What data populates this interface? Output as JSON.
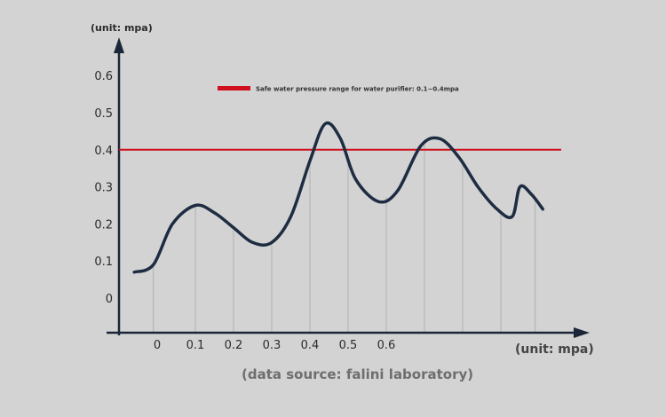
{
  "chart_data": {
    "type": "line",
    "y_unit_label": "(unit: mpa)",
    "x_unit_label": "(unit: mpa)",
    "source": "(data source: falini laboratory)",
    "y_ticks": [
      "0",
      "0.1",
      "0.2",
      "0.3",
      "0.4",
      "0.5",
      "0.6"
    ],
    "x_ticks": [
      "0",
      "0.1",
      "0.2",
      "0.3",
      "0.4",
      "0.5",
      "0.6"
    ],
    "ylim": [
      -0.1,
      0.7
    ],
    "reference_line": {
      "value": 0.4,
      "label": "Safe water pressure range for water purifier: 0.1~0.4mpa",
      "color": "#d0101c"
    },
    "curve_color": "#1e2c42",
    "series": [
      {
        "points": [
          [
            -0.06,
            0.07
          ],
          [
            -0.01,
            0.09
          ],
          [
            0.04,
            0.2
          ],
          [
            0.1,
            0.25
          ],
          [
            0.15,
            0.23
          ],
          [
            0.2,
            0.19
          ],
          [
            0.25,
            0.15
          ],
          [
            0.3,
            0.15
          ],
          [
            0.35,
            0.22
          ],
          [
            0.4,
            0.37
          ],
          [
            0.44,
            0.47
          ],
          [
            0.48,
            0.43
          ],
          [
            0.52,
            0.32
          ],
          [
            0.58,
            0.26
          ],
          [
            0.63,
            0.29
          ],
          [
            0.69,
            0.41
          ],
          [
            0.74,
            0.43
          ],
          [
            0.79,
            0.38
          ],
          [
            0.84,
            0.3
          ],
          [
            0.89,
            0.24
          ],
          [
            0.93,
            0.22
          ],
          [
            0.95,
            0.3
          ],
          [
            0.98,
            0.28
          ],
          [
            1.01,
            0.24
          ]
        ]
      }
    ],
    "gridlines_x": [
      -0.01,
      0.1,
      0.2,
      0.3,
      0.4,
      0.5,
      0.6,
      0.7,
      0.8,
      0.9,
      0.99
    ]
  }
}
